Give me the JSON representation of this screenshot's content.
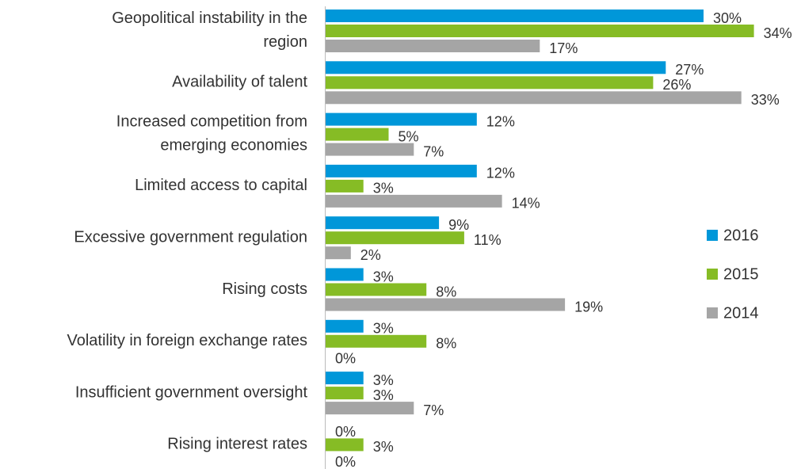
{
  "chart_data": {
    "type": "bar",
    "orientation": "horizontal",
    "categories": [
      "Geopolitical instability in the\nregion",
      "Availability of talent",
      "Increased competition from\nemerging economies",
      "Limited access to capital",
      "Excessive government regulation",
      "Rising costs",
      "Volatility in foreign exchange rates",
      "Insufficient government oversight",
      "Rising interest rates"
    ],
    "series": [
      {
        "name": "2016",
        "color": "#0097d9",
        "values": [
          30,
          27,
          12,
          12,
          9,
          3,
          3,
          3,
          0
        ],
        "value_labels": [
          "30%",
          "27%",
          "12%",
          "12%",
          "9%",
          "3%",
          "3%",
          "3%",
          "0%"
        ]
      },
      {
        "name": "2015",
        "color": "#86bc25",
        "values": [
          34,
          26,
          5,
          3,
          11,
          8,
          8,
          3,
          3
        ],
        "value_labels": [
          "34%",
          "26%",
          "5%",
          "3%",
          "11%",
          "8%",
          "8%",
          "3%",
          "3%"
        ]
      },
      {
        "name": "2014",
        "color": "#a5a5a5",
        "values": [
          17,
          33,
          7,
          14,
          2,
          19,
          0,
          7,
          0
        ],
        "value_labels": [
          "17%",
          "33%",
          "7%",
          "14%",
          "2%",
          "19%",
          "0%",
          "7%",
          "0%"
        ]
      }
    ],
    "legend": "right"
  }
}
